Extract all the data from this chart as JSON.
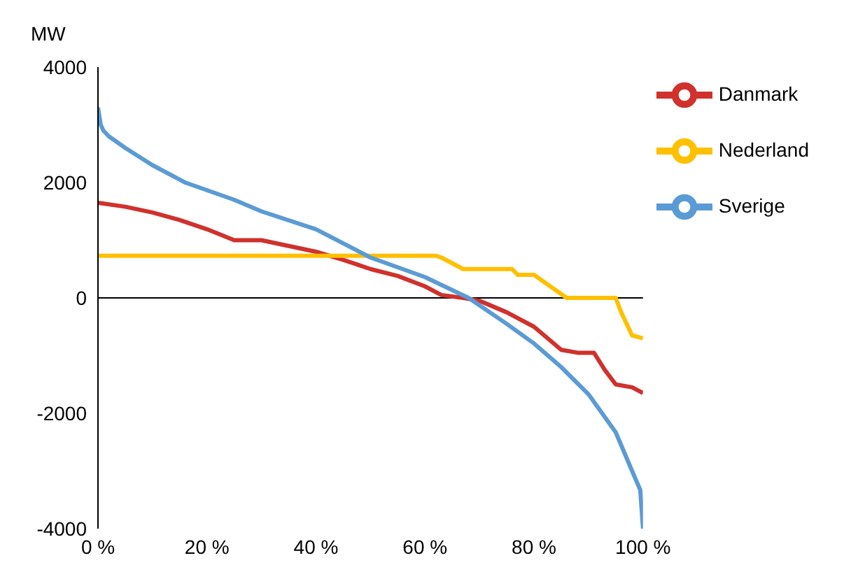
{
  "chart_data": {
    "type": "line",
    "ylabel": "MW",
    "xlim": [
      0,
      100
    ],
    "xticks": [
      {
        "value": 0,
        "label": "0 %"
      },
      {
        "value": 20,
        "label": "20 %"
      },
      {
        "value": 40,
        "label": "40 %"
      },
      {
        "value": 60,
        "label": "60 %"
      },
      {
        "value": 80,
        "label": "80 %"
      },
      {
        "value": 100,
        "label": "100 %"
      }
    ],
    "ylim": [
      -4000,
      4000
    ],
    "yticks": [
      -4000,
      -2000,
      0,
      2000,
      4000
    ],
    "grid": false,
    "legend": "top right",
    "marker": "none",
    "line_style": "solid",
    "ref_lines": [
      {
        "axis": "y",
        "value": 0,
        "color": "#000000"
      }
    ],
    "series": [
      {
        "name": "Danmark",
        "color": "#d0312d",
        "x": [
          0,
          5,
          10,
          15,
          20,
          25,
          30,
          35,
          40,
          45,
          50,
          55,
          60,
          63,
          67,
          70,
          75,
          80,
          85,
          88,
          91,
          93,
          95,
          98,
          100
        ],
        "values": [
          1650,
          1580,
          1480,
          1350,
          1190,
          1000,
          1000,
          900,
          800,
          660,
          500,
          380,
          200,
          50,
          0,
          -50,
          -250,
          -500,
          -900,
          -950,
          -950,
          -1250,
          -1500,
          -1550,
          -1650
        ]
      },
      {
        "name": "Nederland",
        "color": "#ffc000",
        "x": [
          0,
          62,
          63,
          67,
          76,
          77,
          80,
          83,
          86,
          95,
          96,
          98,
          100
        ],
        "values": [
          730,
          730,
          700,
          500,
          500,
          400,
          400,
          200,
          0,
          0,
          -250,
          -650,
          -700
        ]
      },
      {
        "name": "Sverige",
        "color": "#5b9bd5",
        "x": [
          0,
          0.5,
          1,
          2,
          5,
          10,
          16,
          25,
          30,
          40,
          50,
          60,
          68,
          75,
          80,
          85,
          90,
          95,
          98,
          99.5,
          100
        ],
        "values": [
          3300,
          3000,
          2900,
          2800,
          2600,
          2300,
          2000,
          1700,
          1500,
          1190,
          700,
          360,
          0,
          -450,
          -790,
          -1200,
          -1670,
          -2330,
          -3000,
          -3330,
          -4000
        ]
      }
    ]
  }
}
